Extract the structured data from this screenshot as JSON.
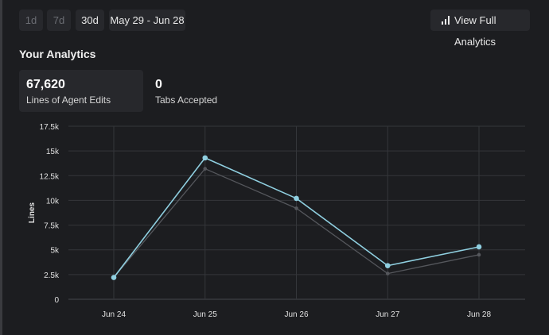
{
  "timeframes": {
    "d1": "1d",
    "d7": "7d",
    "d30": "30d",
    "range": "May 29 - Jun 28"
  },
  "actions": {
    "view_full": "View Full Analytics",
    "view_full_icon": "bar-chart-icon"
  },
  "analytics": {
    "title": "Your Analytics",
    "stats": [
      {
        "value": "67,620",
        "label": "Lines of Agent Edits"
      },
      {
        "value": "0",
        "label": "Tabs Accepted"
      }
    ]
  },
  "colors": {
    "primary_line": "#8fcfe0",
    "secondary_line": "#55575c",
    "grid": "#34363a",
    "background": "#1c1d20"
  },
  "chart_data": {
    "type": "line",
    "ylabel": "Lines",
    "xlabel": "",
    "categories": [
      "Jun 24",
      "Jun 25",
      "Jun 26",
      "Jun 27",
      "Jun 28"
    ],
    "y_ticks": [
      "0",
      "2.5k",
      "5k",
      "7.5k",
      "10k",
      "12.5k",
      "15k",
      "17.5k"
    ],
    "ylim": [
      0,
      17500
    ],
    "grid": true,
    "series": [
      {
        "values": [
          2200,
          14300,
          10200,
          3400,
          5300
        ]
      },
      {
        "values": [
          2200,
          13200,
          9200,
          2600,
          4500
        ]
      }
    ]
  }
}
